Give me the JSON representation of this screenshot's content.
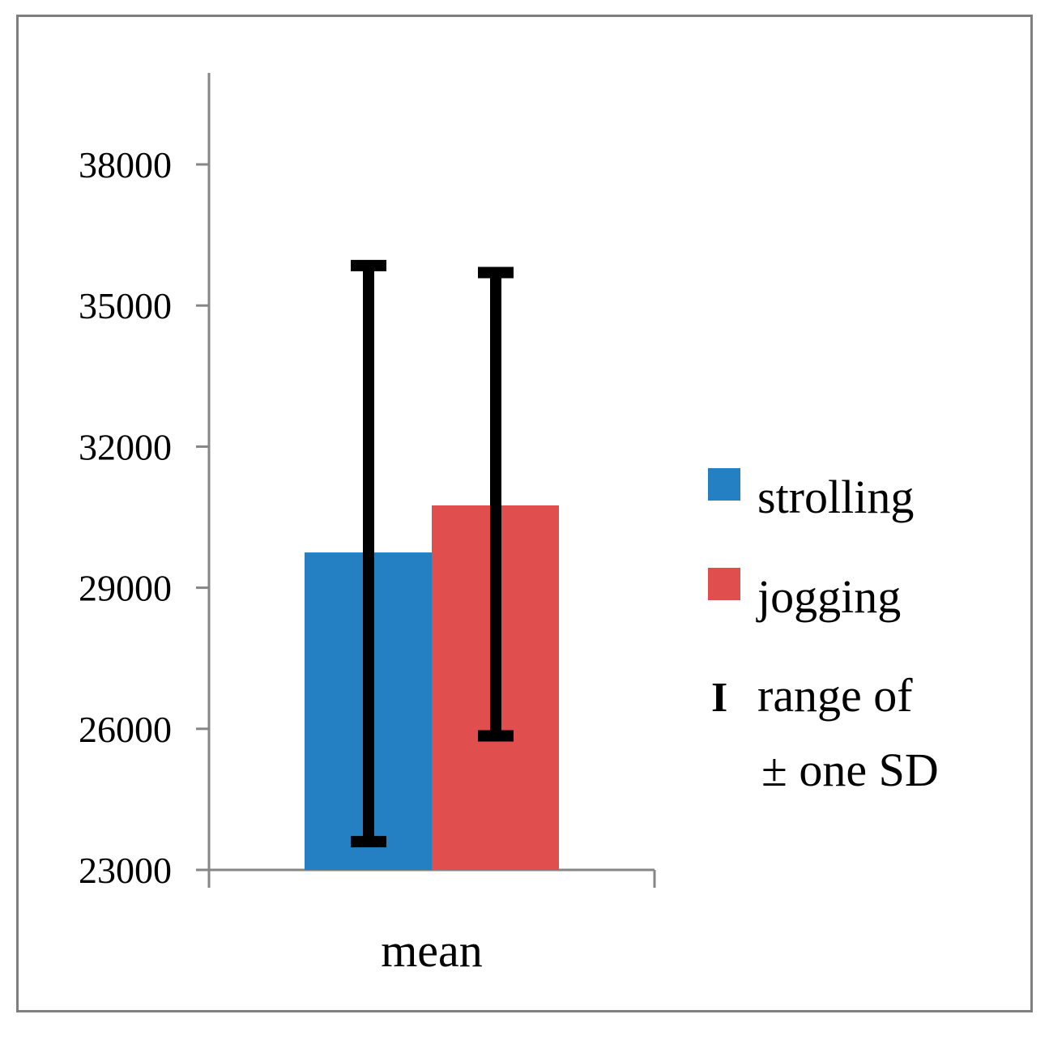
{
  "chart_data": {
    "type": "bar",
    "categories": [
      "mean"
    ],
    "series": [
      {
        "name": "strolling",
        "values": [
          29750
        ],
        "error_low": [
          23600
        ],
        "error_high": [
          35850
        ],
        "color": "#2580c3"
      },
      {
        "name": "jogging",
        "values": [
          30750
        ],
        "error_low": [
          25850
        ],
        "error_high": [
          35700
        ],
        "color": "#e04f4d"
      }
    ],
    "yticks": [
      23000,
      26000,
      29000,
      32000,
      35000,
      38000
    ],
    "ylim": [
      23000,
      40000
    ],
    "grid": false,
    "legend_position": "right",
    "error_bar_legend": {
      "glyph": "I",
      "lines": [
        "range of",
        "± one SD"
      ]
    },
    "title": "",
    "xlabel": "",
    "ylabel": ""
  }
}
